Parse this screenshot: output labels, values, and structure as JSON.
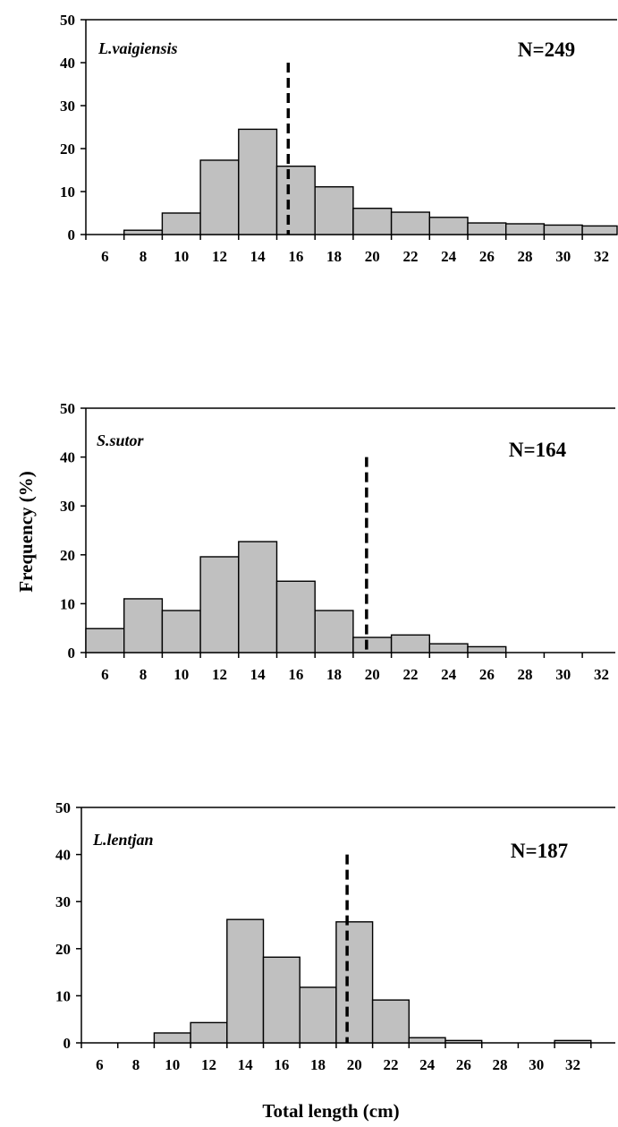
{
  "chart_data": [
    {
      "type": "bar",
      "species": "L.vaigiensis",
      "n_label": "N=249",
      "ylim": [
        0,
        50
      ],
      "yticks": [
        "0",
        "10",
        "20",
        "30",
        "40",
        "50"
      ],
      "xticks": [
        "6",
        "8",
        "10",
        "12",
        "14",
        "16",
        "18",
        "20",
        "22",
        "24",
        "26",
        "28",
        "30",
        "32"
      ],
      "bins": [
        {
          "start": 7,
          "end": 9,
          "value": 1
        },
        {
          "start": 9,
          "end": 11,
          "value": 5
        },
        {
          "start": 11,
          "end": 13,
          "value": 17.3
        },
        {
          "start": 13,
          "end": 15,
          "value": 24.5
        },
        {
          "start": 15,
          "end": 17,
          "value": 15.9
        },
        {
          "start": 17,
          "end": 19,
          "value": 11.1
        },
        {
          "start": 19,
          "end": 21,
          "value": 6.1
        },
        {
          "start": 21,
          "end": 23,
          "value": 5.2
        },
        {
          "start": 23,
          "end": 25,
          "value": 4
        },
        {
          "start": 25,
          "end": 27,
          "value": 2.7
        },
        {
          "start": 27,
          "end": 29,
          "value": 2.5
        },
        {
          "start": 29,
          "end": 31,
          "value": 2.2
        },
        {
          "start": 31,
          "end": 33,
          "value": 2
        }
      ],
      "dashed_line_x": 15.6
    },
    {
      "type": "bar",
      "species": "S.sutor",
      "n_label": "N=164",
      "ylim": [
        0,
        50
      ],
      "yticks": [
        "0",
        "10",
        "20",
        "30",
        "40",
        "50"
      ],
      "xticks": [
        "6",
        "8",
        "10",
        "12",
        "14",
        "16",
        "18",
        "20",
        "22",
        "24",
        "26",
        "28",
        "30",
        "32"
      ],
      "bins": [
        {
          "start": 5,
          "end": 7,
          "value": 4.9
        },
        {
          "start": 7,
          "end": 9,
          "value": 11
        },
        {
          "start": 9,
          "end": 11,
          "value": 8.6
        },
        {
          "start": 11,
          "end": 13,
          "value": 19.6
        },
        {
          "start": 13,
          "end": 15,
          "value": 22.7
        },
        {
          "start": 15,
          "end": 17,
          "value": 14.6
        },
        {
          "start": 17,
          "end": 19,
          "value": 8.6
        },
        {
          "start": 19,
          "end": 21,
          "value": 3.1
        },
        {
          "start": 21,
          "end": 23,
          "value": 3.6
        },
        {
          "start": 23,
          "end": 25,
          "value": 1.8
        },
        {
          "start": 25,
          "end": 27,
          "value": 1.2
        }
      ],
      "dashed_line_x": 19.7
    },
    {
      "type": "bar",
      "species": "L.lentjan",
      "n_label": "N=187",
      "ylim": [
        0,
        50
      ],
      "yticks": [
        "0",
        "10",
        "20",
        "30",
        "40",
        "50"
      ],
      "xticks": [
        "6",
        "8",
        "10",
        "12",
        "14",
        "16",
        "18",
        "20",
        "22",
        "24",
        "26",
        "28",
        "30",
        "32"
      ],
      "bins": [
        {
          "start": 9,
          "end": 11,
          "value": 2.1
        },
        {
          "start": 11,
          "end": 13,
          "value": 4.3
        },
        {
          "start": 13,
          "end": 15,
          "value": 26.2
        },
        {
          "start": 15,
          "end": 17,
          "value": 18.2
        },
        {
          "start": 17,
          "end": 19,
          "value": 11.8
        },
        {
          "start": 19,
          "end": 21,
          "value": 25.7
        },
        {
          "start": 21,
          "end": 23,
          "value": 9.1
        },
        {
          "start": 23,
          "end": 25,
          "value": 1.1
        },
        {
          "start": 25,
          "end": 27,
          "value": 0.5
        },
        {
          "start": 31,
          "end": 33,
          "value": 0.5
        }
      ],
      "dashed_line_x": 19.6
    }
  ],
  "ylabel": "Frequency (%)",
  "xlabel": "Total length (cm)"
}
